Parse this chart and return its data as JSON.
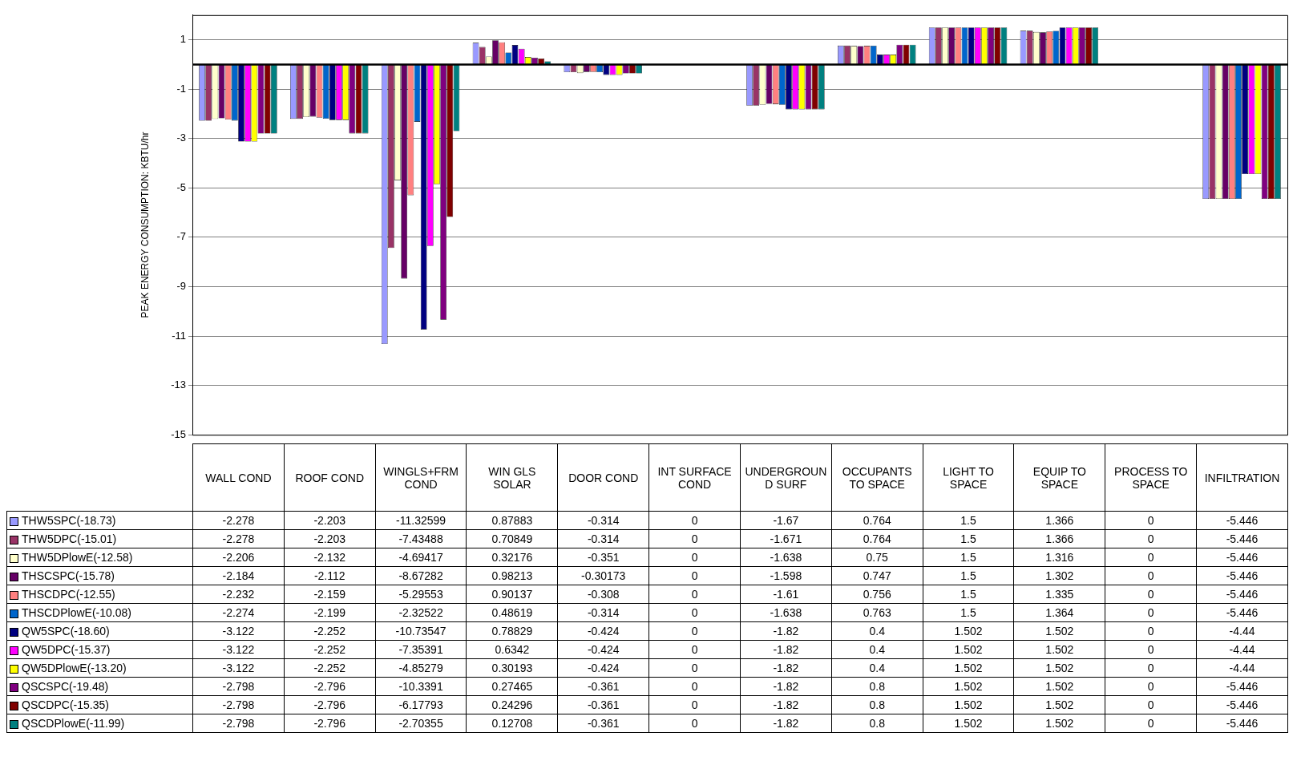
{
  "chart_data": {
    "type": "bar",
    "ylabel": "PEAK ENERGY CONSUMPTION: KBTU/hr",
    "categories": [
      "WALL COND",
      "ROOF COND",
      "WINGLS+FRM COND",
      "WIN GLS SOLAR",
      "DOOR COND",
      "INT SURFACE COND",
      "UNDERGROUND SURF",
      "OCCUPANTS TO SPACE",
      "LIGHT TO SPACE",
      "EQUIP TO SPACE",
      "PROCESS TO SPACE",
      "INFILTRATION"
    ],
    "ylim": [
      -15,
      2
    ],
    "yticks": [
      -15,
      -13,
      -11,
      -9,
      -7,
      -5,
      -3,
      -1,
      1
    ],
    "grid": "y",
    "legend": "bottom left",
    "data_labels": true,
    "series": [
      {
        "name": "THW5SPC(-18.73)",
        "color": "#9999ff",
        "values": [
          -2.278,
          -2.203,
          -11.32599,
          0.87883,
          -0.314,
          0,
          -1.67,
          0.764,
          1.5,
          1.366,
          0,
          -5.446
        ]
      },
      {
        "name": "THW5DPC(-15.01)",
        "color": "#993366",
        "values": [
          -2.278,
          -2.203,
          -7.43488,
          0.70849,
          -0.314,
          0,
          -1.671,
          0.764,
          1.5,
          1.366,
          0,
          -5.446
        ]
      },
      {
        "name": "THW5DPlowE(-12.58)",
        "color": "#ffffcc",
        "values": [
          -2.206,
          -2.132,
          -4.69417,
          0.32176,
          -0.351,
          0,
          -1.638,
          0.75,
          1.5,
          1.316,
          0,
          -5.446
        ]
      },
      {
        "name": "THSCSPC(-15.78)",
        "color": "#660066",
        "values": [
          -2.184,
          -2.112,
          -8.67282,
          0.98213,
          -0.30173,
          0,
          -1.598,
          0.747,
          1.5,
          1.302,
          0,
          -5.446
        ]
      },
      {
        "name": "THSCDPC(-12.55)",
        "color": "#ff8080",
        "values": [
          -2.232,
          -2.159,
          -5.29553,
          0.90137,
          -0.308,
          0,
          -1.61,
          0.756,
          1.5,
          1.335,
          0,
          -5.446
        ]
      },
      {
        "name": "THSCDPlowE(-10.08)",
        "color": "#0066cc",
        "values": [
          -2.274,
          -2.199,
          -2.32522,
          0.48619,
          -0.314,
          0,
          -1.638,
          0.763,
          1.5,
          1.364,
          0,
          -5.446
        ]
      },
      {
        "name": "QW5SPC(-18.60)",
        "color": "#000080",
        "values": [
          -3.122,
          -2.252,
          -10.73547,
          0.78829,
          -0.424,
          0,
          -1.82,
          0.4,
          1.502,
          1.502,
          0,
          -4.44
        ]
      },
      {
        "name": "QW5DPC(-15.37)",
        "color": "#ff00ff",
        "values": [
          -3.122,
          -2.252,
          -7.35391,
          0.6342,
          -0.424,
          0,
          -1.82,
          0.4,
          1.502,
          1.502,
          0,
          -4.44
        ]
      },
      {
        "name": "QW5DPlowE(-13.20)",
        "color": "#ffff00",
        "values": [
          -3.122,
          -2.252,
          -4.85279,
          0.30193,
          -0.424,
          0,
          -1.82,
          0.4,
          1.502,
          1.502,
          0,
          -4.44
        ]
      },
      {
        "name": "QSCSPC(-19.48)",
        "color": "#800080",
        "values": [
          -2.798,
          -2.796,
          -10.3391,
          0.27465,
          -0.361,
          0,
          -1.82,
          0.8,
          1.502,
          1.502,
          0,
          -5.446
        ]
      },
      {
        "name": "QSCDPC(-15.35)",
        "color": "#800000",
        "values": [
          -2.798,
          -2.796,
          -6.17793,
          0.24296,
          -0.361,
          0,
          -1.82,
          0.8,
          1.502,
          1.502,
          0,
          -5.446
        ]
      },
      {
        "name": "QSCDPlowE(-11.99)",
        "color": "#008080",
        "values": [
          -2.798,
          -2.796,
          -2.70355,
          0.12708,
          -0.361,
          0,
          -1.82,
          0.8,
          1.502,
          1.502,
          0,
          -5.446
        ]
      }
    ]
  }
}
